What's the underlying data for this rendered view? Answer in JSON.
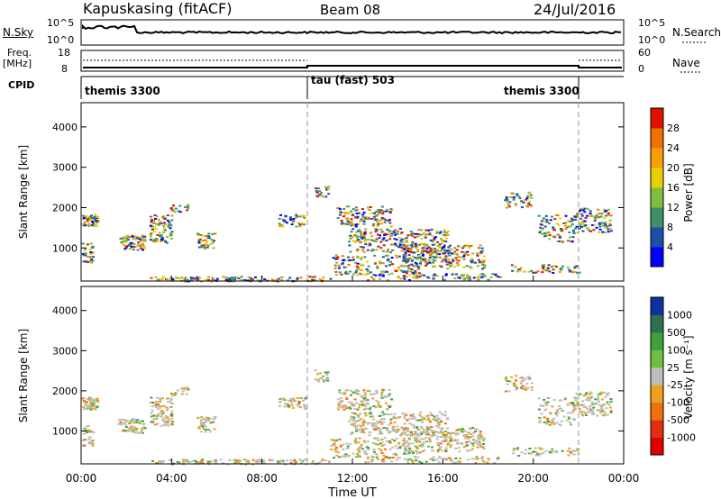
{
  "header": {
    "station": "Kapuskasing (fitACF)",
    "beam": "Beam 08",
    "date": "24/Jul/2016"
  },
  "top_panel": {
    "left_label": "N.Sky",
    "right_label": "N.Search",
    "left_ticks": [
      "10^5",
      "10^0"
    ],
    "right_ticks": [
      "10^5",
      "10^0"
    ]
  },
  "freq_panel": {
    "left_label_1": "Freq.",
    "left_label_2": "[MHz]",
    "right_label": "Nave",
    "left_ticks": [
      "18",
      "8"
    ],
    "right_ticks": [
      "60",
      "0"
    ]
  },
  "cpid": {
    "label": "CPID",
    "modes": [
      "themis 3300",
      "tau (fast) 503",
      "themis 3300"
    ]
  },
  "colors": {
    "power_scale": [
      "#0000ff",
      "#1f4ea8",
      "#3f8f6a",
      "#7fbf3f",
      "#e8d000",
      "#f5a000",
      "#f07000",
      "#e01000"
    ],
    "velocity_scale": [
      "#1030a0",
      "#2f6f4f",
      "#3fa03f",
      "#70c040",
      "#bdbdbd",
      "#f0a020",
      "#f07010",
      "#e03010",
      "#e00000"
    ]
  },
  "chart_data": [
    {
      "type": "heatmap",
      "title": "",
      "xlabel": "",
      "ylabel": "Slant Range [km]",
      "x_ticks": [
        "00:00",
        "04:00",
        "08:00",
        "12:00",
        "16:00",
        "20:00",
        "00:00"
      ],
      "y_ticks": [
        1000,
        2000,
        3000,
        4000
      ],
      "ylim": [
        180,
        4600
      ],
      "colorbar": {
        "label": "Power [dB]",
        "ticks": [
          4,
          8,
          12,
          16,
          20,
          24,
          28
        ]
      }
    },
    {
      "type": "heatmap",
      "title": "",
      "xlabel": "Time UT",
      "ylabel": "Slant Range [km]",
      "x_ticks": [
        "00:00",
        "04:00",
        "08:00",
        "12:00",
        "16:00",
        "20:00",
        "00:00"
      ],
      "y_ticks": [
        1000,
        2000,
        3000,
        4000
      ],
      "ylim": [
        180,
        4600
      ],
      "colorbar": {
        "label": "Velocity [m s⁻¹]",
        "ticks": [
          1000,
          500,
          100,
          25,
          -25,
          -100,
          -500,
          -1000
        ]
      }
    }
  ]
}
